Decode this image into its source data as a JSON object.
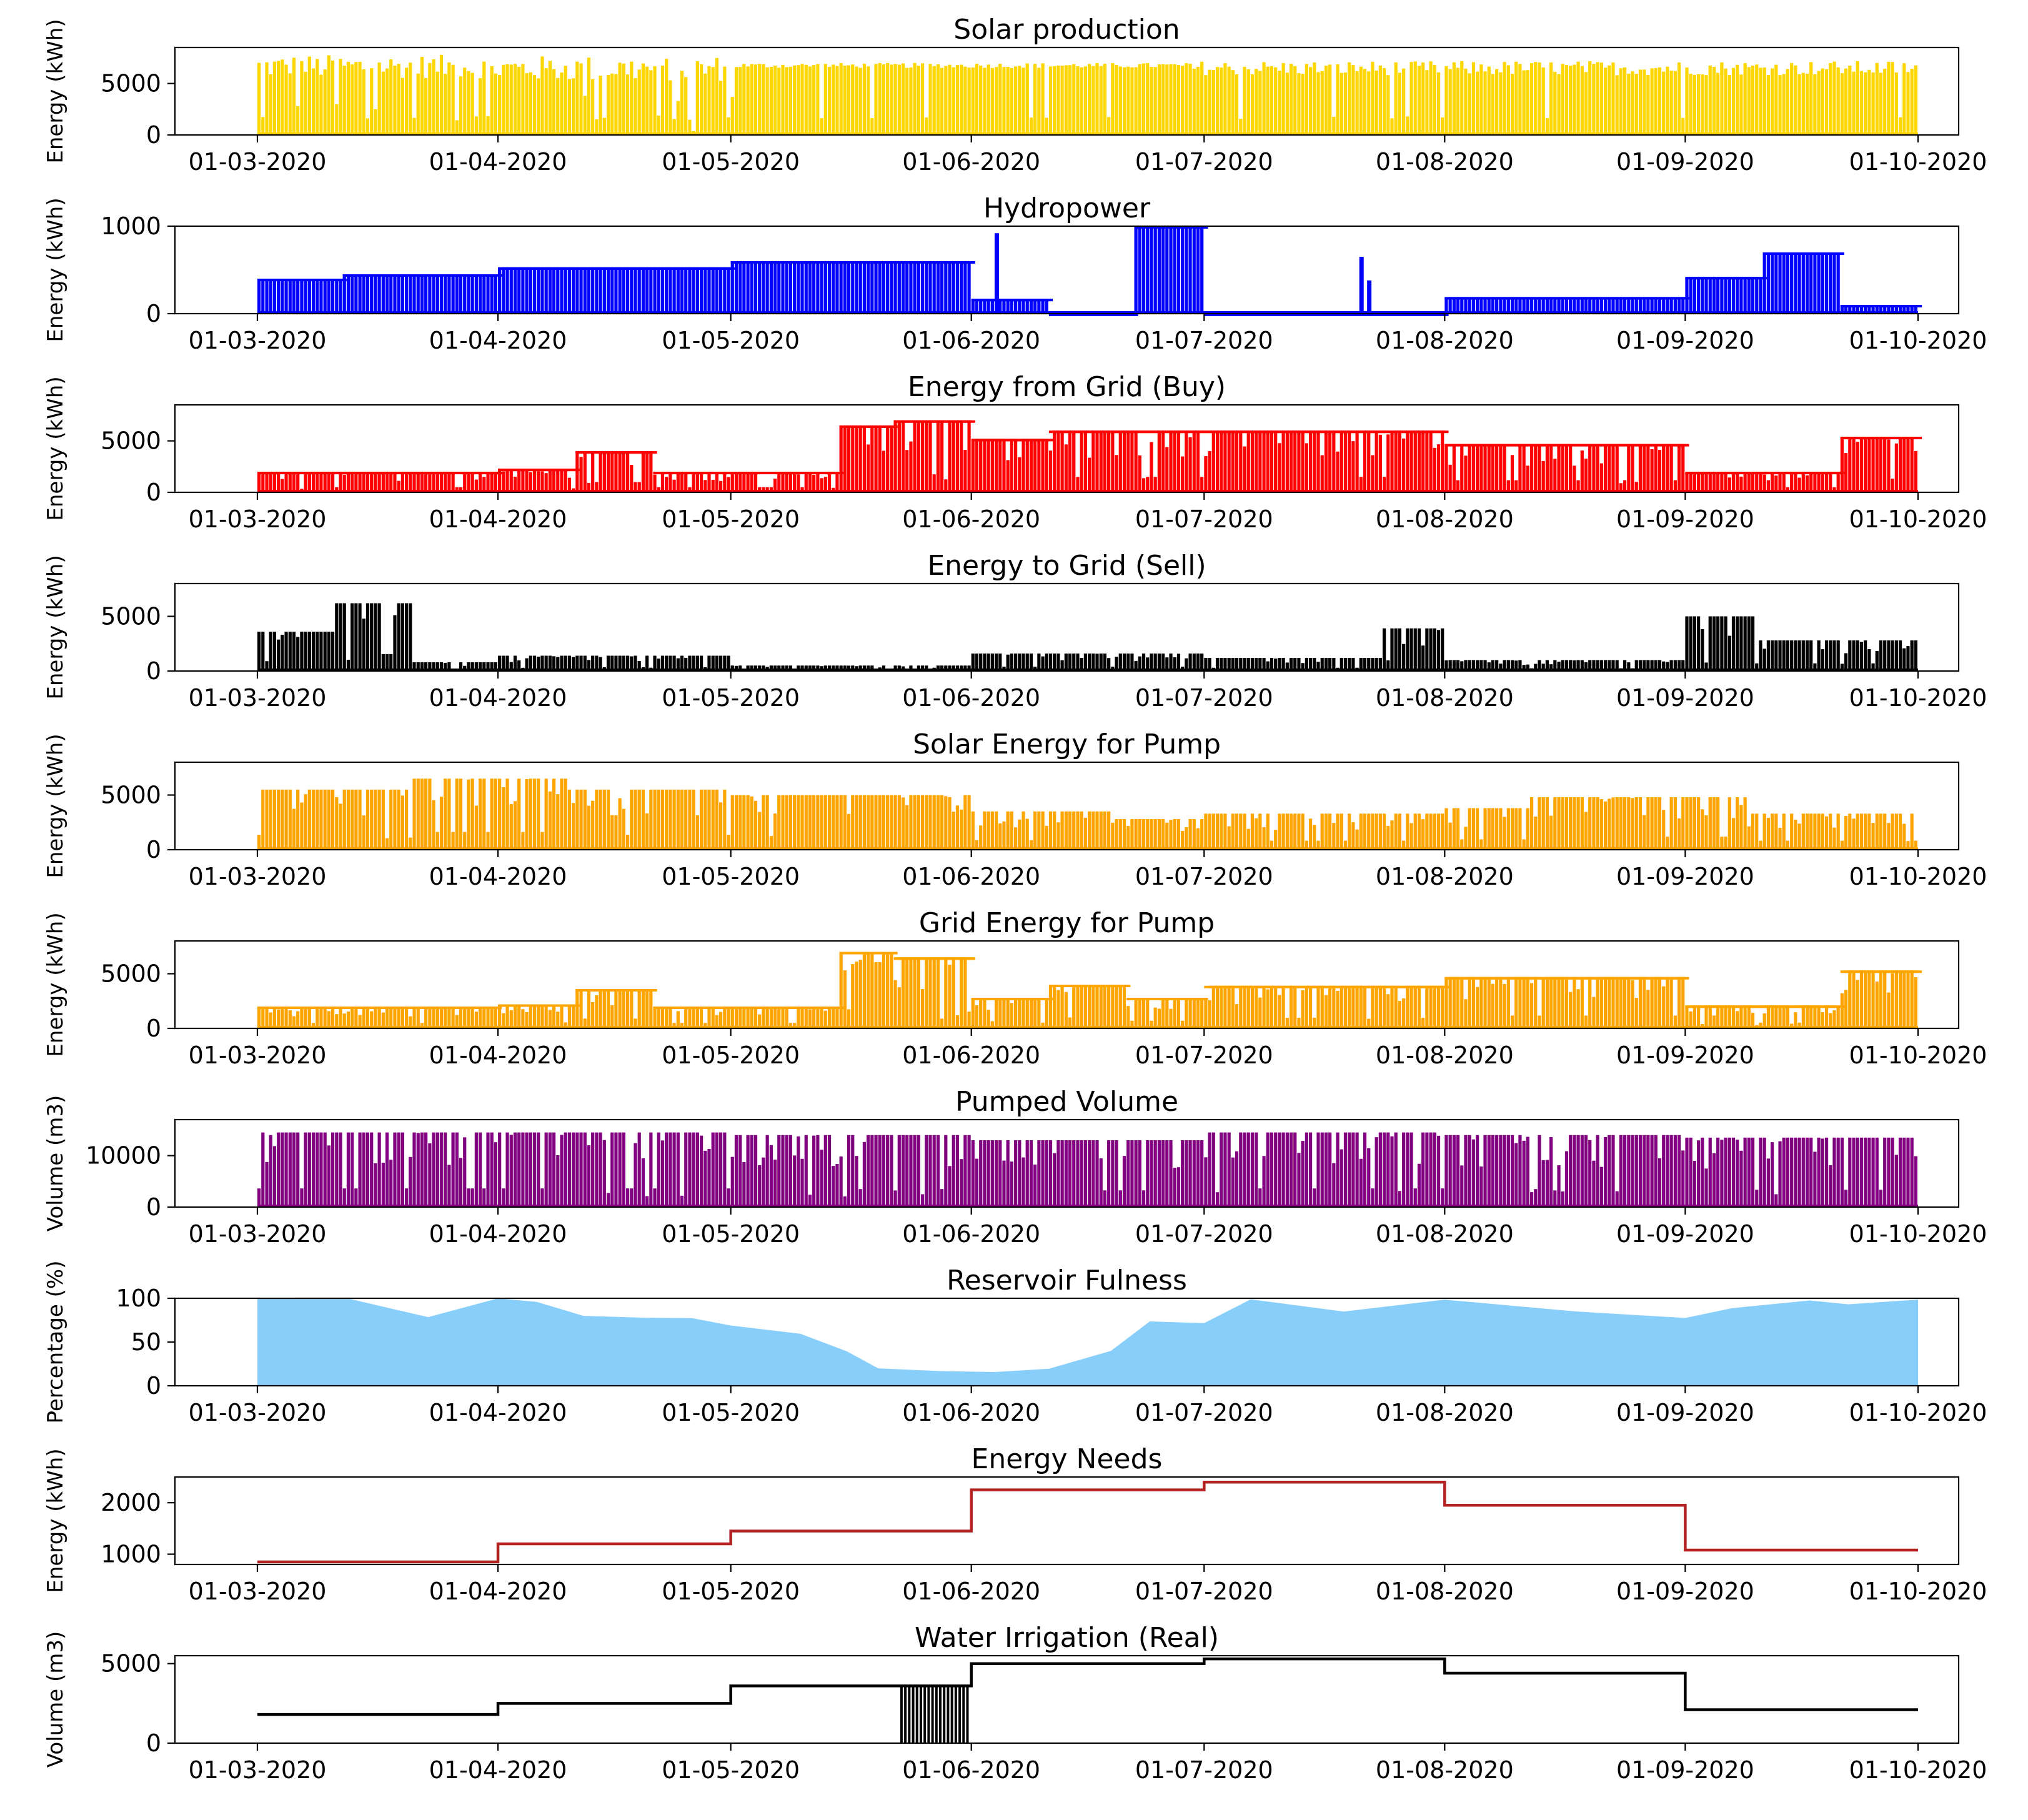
{
  "xticks": [
    "01-03-2020",
    "01-04-2020",
    "01-05-2020",
    "01-06-2020",
    "01-07-2020",
    "01-08-2020",
    "01-09-2020",
    "01-10-2020"
  ],
  "chart_data": [
    {
      "id": "solar",
      "type": "bar",
      "title": "Solar production",
      "ylabel": "Energy (kWh)",
      "color": "#FFD700",
      "ylim": [
        0,
        8500
      ],
      "yticks": [
        0,
        5000
      ],
      "x_range_days": [
        0,
        214
      ],
      "segments": [
        {
          "from": 0,
          "to": 30,
          "min": 5500,
          "max": 7800,
          "note": "daily values"
        },
        {
          "from": 30,
          "to": 60,
          "min": 5200,
          "max": 7700
        },
        {
          "from": 60,
          "to": 120,
          "min": 6500,
          "max": 7000
        },
        {
          "from": 120,
          "to": 214,
          "min": 5800,
          "max": 7200
        }
      ],
      "dips": [
        [
          5,
          2800
        ],
        [
          10,
          3000
        ],
        [
          15,
          2500
        ],
        [
          28,
          1800
        ],
        [
          42,
          3800
        ],
        [
          54,
          3300
        ],
        [
          56,
          1500
        ],
        [
          61,
          3700
        ]
      ]
    },
    {
      "id": "hydro",
      "type": "bar",
      "title": "Hydropower",
      "ylabel": "Energy (kWh)",
      "color": "#0000FF",
      "ylim": [
        0,
        1000
      ],
      "yticks": [
        0,
        1000
      ],
      "x_range_days": [
        0,
        214
      ],
      "segments": [
        {
          "from": 0,
          "to": 11,
          "level": 400
        },
        {
          "from": 11,
          "to": 31,
          "level": 450
        },
        {
          "from": 31,
          "to": 61,
          "level": 530
        },
        {
          "from": 61,
          "to": 92,
          "level": 600
        },
        {
          "from": 92,
          "to": 102,
          "level": 170
        },
        {
          "from": 102,
          "to": 113,
          "level": 0
        },
        {
          "from": 113,
          "to": 122,
          "level": 1000
        },
        {
          "from": 122,
          "to": 153,
          "level": 0
        },
        {
          "from": 153,
          "to": 184,
          "level": 190
        },
        {
          "from": 184,
          "to": 194,
          "level": 420
        },
        {
          "from": 194,
          "to": 204,
          "level": 700
        },
        {
          "from": 204,
          "to": 214,
          "level": 100
        }
      ],
      "spikes": [
        [
          95,
          920
        ],
        [
          142,
          650
        ],
        [
          143,
          380
        ]
      ]
    },
    {
      "id": "grid_buy",
      "type": "bar",
      "title": "Energy from Grid (Buy)",
      "ylabel": "Energy (kWh)",
      "color": "#FF0000",
      "ylim": [
        0,
        8500
      ],
      "yticks": [
        0,
        5000
      ],
      "x_range_days": [
        0,
        214
      ],
      "segments": [
        {
          "from": 0,
          "to": 31,
          "level": 2000
        },
        {
          "from": 31,
          "to": 41,
          "level": 2300
        },
        {
          "from": 41,
          "to": 51,
          "level": 4000
        },
        {
          "from": 51,
          "to": 75,
          "level": 2000
        },
        {
          "from": 75,
          "to": 82,
          "level": 6500
        },
        {
          "from": 82,
          "to": 92,
          "level": 7000
        },
        {
          "from": 92,
          "to": 102,
          "level": 5200
        },
        {
          "from": 102,
          "to": 122,
          "level": 6000
        },
        {
          "from": 122,
          "to": 153,
          "level": 6000
        },
        {
          "from": 153,
          "to": 184,
          "level": 4700
        },
        {
          "from": 184,
          "to": 204,
          "level": 2000
        },
        {
          "from": 204,
          "to": 214,
          "level": 5400
        }
      ]
    },
    {
      "id": "grid_sell",
      "type": "bar",
      "title": "Energy to Grid (Sell)",
      "ylabel": "Energy (kWh)",
      "color": "#000000",
      "ylim": [
        0,
        8000
      ],
      "yticks": [
        0,
        5000
      ],
      "x_range_days": [
        0,
        214
      ],
      "segments": [
        {
          "from": 0,
          "to": 10,
          "level": 3600
        },
        {
          "from": 10,
          "to": 20,
          "level": 6200
        },
        {
          "from": 20,
          "to": 31,
          "level": 800
        },
        {
          "from": 31,
          "to": 61,
          "level": 1400
        },
        {
          "from": 61,
          "to": 92,
          "level": 500
        },
        {
          "from": 92,
          "to": 122,
          "level": 1600
        },
        {
          "from": 122,
          "to": 145,
          "level": 1200
        },
        {
          "from": 145,
          "to": 153,
          "level": 3900
        },
        {
          "from": 153,
          "to": 184,
          "level": 1000
        },
        {
          "from": 184,
          "to": 193,
          "level": 5000
        },
        {
          "from": 193,
          "to": 214,
          "level": 2800
        }
      ]
    },
    {
      "id": "solar_pump",
      "type": "bar",
      "title": "Solar Energy for Pump",
      "ylabel": "Energy (kWh)",
      "color": "#FFA500",
      "ylim": [
        0,
        8000
      ],
      "yticks": [
        0,
        5000
      ],
      "x_range_days": [
        0,
        214
      ],
      "segments": [
        {
          "from": 0,
          "to": 20,
          "level": 5500
        },
        {
          "from": 20,
          "to": 40,
          "level": 6500
        },
        {
          "from": 40,
          "to": 61,
          "level": 5500
        },
        {
          "from": 61,
          "to": 92,
          "level": 5000
        },
        {
          "from": 92,
          "to": 110,
          "level": 3500
        },
        {
          "from": 110,
          "to": 122,
          "level": 2800
        },
        {
          "from": 122,
          "to": 153,
          "level": 3300
        },
        {
          "from": 153,
          "to": 164,
          "level": 3800
        },
        {
          "from": 164,
          "to": 192,
          "level": 4800
        },
        {
          "from": 192,
          "to": 214,
          "level": 3300
        }
      ]
    },
    {
      "id": "grid_pump",
      "type": "bar",
      "title": "Grid Energy for Pump",
      "ylabel": "Energy (kWh)",
      "color": "#FFA500",
      "ylim": [
        0,
        8000
      ],
      "yticks": [
        0,
        5000
      ],
      "x_range_days": [
        0,
        214
      ],
      "segments": [
        {
          "from": 0,
          "to": 31,
          "level": 2000
        },
        {
          "from": 31,
          "to": 41,
          "level": 2200
        },
        {
          "from": 41,
          "to": 51,
          "level": 3600
        },
        {
          "from": 51,
          "to": 75,
          "level": 2000
        },
        {
          "from": 75,
          "to": 82,
          "level": 7000
        },
        {
          "from": 82,
          "to": 92,
          "level": 6500
        },
        {
          "from": 92,
          "to": 102,
          "level": 2800
        },
        {
          "from": 102,
          "to": 112,
          "level": 4000
        },
        {
          "from": 112,
          "to": 122,
          "level": 2800
        },
        {
          "from": 122,
          "to": 153,
          "level": 3900
        },
        {
          "from": 153,
          "to": 184,
          "level": 4700
        },
        {
          "from": 184,
          "to": 204,
          "level": 2100
        },
        {
          "from": 204,
          "to": 214,
          "level": 5300
        }
      ]
    },
    {
      "id": "pumped",
      "type": "bar",
      "title": "Pumped Volume",
      "ylabel": "Volume (m3)",
      "color": "#800080",
      "ylim": [
        0,
        17000
      ],
      "yticks": [
        0,
        10000
      ],
      "x_range_days": [
        0,
        214
      ],
      "segments": [
        {
          "from": 0,
          "to": 31,
          "level": 14500
        },
        {
          "from": 31,
          "to": 61,
          "level": 14500
        },
        {
          "from": 61,
          "to": 92,
          "level": 14000
        },
        {
          "from": 92,
          "to": 122,
          "level": 13000
        },
        {
          "from": 122,
          "to": 153,
          "level": 14500
        },
        {
          "from": 153,
          "to": 184,
          "level": 14000
        },
        {
          "from": 184,
          "to": 214,
          "level": 13500
        }
      ]
    },
    {
      "id": "reservoir",
      "type": "area",
      "title": "Reservoir Fulness",
      "ylabel": "Percentage (%)",
      "color": "#87CEFA",
      "ylim": [
        0,
        100
      ],
      "yticks": [
        0,
        50,
        100
      ],
      "x_range_days": [
        0,
        214
      ],
      "points": [
        [
          0,
          100
        ],
        [
          12,
          100
        ],
        [
          22,
          80
        ],
        [
          31,
          100
        ],
        [
          36,
          97
        ],
        [
          42,
          82
        ],
        [
          50,
          80
        ],
        [
          56,
          78
        ],
        [
          61,
          70
        ],
        [
          70,
          60
        ],
        [
          76,
          40
        ],
        [
          80,
          20
        ],
        [
          88,
          17
        ],
        [
          95,
          16
        ],
        [
          102,
          20
        ],
        [
          110,
          40
        ],
        [
          115,
          75
        ],
        [
          122,
          72
        ],
        [
          128,
          100
        ],
        [
          140,
          85
        ],
        [
          153,
          100
        ],
        [
          170,
          85
        ],
        [
          184,
          78
        ],
        [
          190,
          90
        ],
        [
          200,
          100
        ],
        [
          205,
          95
        ],
        [
          214,
          100
        ]
      ]
    },
    {
      "id": "energy_needs",
      "type": "line",
      "step": true,
      "title": "Energy Needs",
      "ylabel": "Energy (kWh)",
      "color": "#B22222",
      "ylim": [
        800,
        2500
      ],
      "yticks": [
        1000,
        2000
      ],
      "x_range_days": [
        0,
        214
      ],
      "steps": [
        [
          0,
          850
        ],
        [
          31,
          1200
        ],
        [
          61,
          1450
        ],
        [
          92,
          2250
        ],
        [
          122,
          2400
        ],
        [
          153,
          1950
        ],
        [
          184,
          1080
        ],
        [
          214,
          1080
        ]
      ]
    },
    {
      "id": "irrigation",
      "type": "line",
      "step": true,
      "title": "Water Irrigation (Real)",
      "ylabel": "Volume (m3)",
      "color": "#000000",
      "ylim": [
        0,
        5500
      ],
      "yticks": [
        0,
        5000
      ],
      "x_range_days": [
        0,
        214
      ],
      "steps": [
        [
          0,
          1800
        ],
        [
          31,
          2500
        ],
        [
          61,
          3600
        ],
        [
          92,
          5000
        ],
        [
          122,
          5300
        ],
        [
          153,
          4400
        ],
        [
          184,
          2100
        ],
        [
          214,
          2100
        ]
      ],
      "oscillation": {
        "from": 83,
        "to": 92,
        "min": 0,
        "max": 3600
      }
    }
  ]
}
